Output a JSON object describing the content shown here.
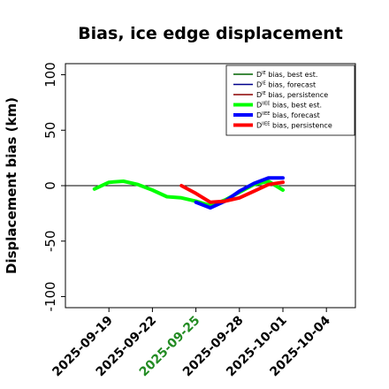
{
  "chart_data": {
    "type": "line",
    "title": "Bias, ice edge displacement",
    "xlabel": "",
    "ylabel": "Displacement bias (km)",
    "xlim": [
      "2025-09-16",
      "2025-10-06"
    ],
    "ylim": [
      -110,
      110
    ],
    "x_ticks": [
      "2025-09-19",
      "2025-09-22",
      "2025-09-25",
      "2025-09-28",
      "2025-10-01",
      "2025-10-04"
    ],
    "x_tick_colors": [
      "#000000",
      "#000000",
      "#228B22",
      "#000000",
      "#000000",
      "#000000"
    ],
    "y_ticks": [
      -100,
      -50,
      0,
      50,
      100
    ],
    "zero_line": true,
    "grid": false,
    "legend_position": "top-right",
    "legend": [
      {
        "prefix": "D",
        "sup": "IE",
        "suffix": " bias, best est.",
        "color": "#006400",
        "width": 1.5
      },
      {
        "prefix": "D",
        "sup": "IE",
        "suffix": " bias, forecast",
        "color": "#00008B",
        "width": 1.5
      },
      {
        "prefix": "D",
        "sup": "IE",
        "suffix": " bias, persistence",
        "color": "#8B0000",
        "width": 1.5
      },
      {
        "prefix": "D",
        "sup": "IIEE",
        "suffix": " bias, best est.",
        "color": "#00FF00",
        "width": 4
      },
      {
        "prefix": "D",
        "sup": "IIEE",
        "suffix": " bias, forecast",
        "color": "#0000FF",
        "width": 4
      },
      {
        "prefix": "D",
        "sup": "IIEE",
        "suffix": " bias, persistence",
        "color": "#FF0000",
        "width": 4
      }
    ],
    "series": [
      {
        "name": "D^IE bias, best est.",
        "color": "#006400",
        "width": 1.5,
        "x": [
          "2025-09-18",
          "2025-09-19",
          "2025-09-20",
          "2025-09-21",
          "2025-09-22",
          "2025-09-23",
          "2025-09-24",
          "2025-09-25",
          "2025-09-26",
          "2025-09-27",
          "2025-09-28",
          "2025-09-29",
          "2025-09-30",
          "2025-10-01"
        ],
        "y": [
          -3,
          3,
          4,
          1,
          -4,
          -10,
          -11,
          -14,
          -18,
          -13,
          -6,
          1,
          4,
          -4
        ]
      },
      {
        "name": "D^IE bias, forecast",
        "color": "#00008B",
        "width": 1.5,
        "x": [
          "2025-09-26",
          "2025-09-27",
          "2025-09-28",
          "2025-09-29",
          "2025-09-30",
          "2025-10-01"
        ],
        "y": [
          -20,
          -14,
          -5,
          2,
          7,
          7
        ]
      },
      {
        "name": "D^IE bias, persistence",
        "color": "#8B0000",
        "width": 1.5,
        "x": [
          "2025-09-24",
          "2025-09-25",
          "2025-09-26",
          "2025-09-27",
          "2025-09-28",
          "2025-09-29",
          "2025-09-30",
          "2025-10-01"
        ],
        "y": [
          0,
          -7,
          -15,
          -14,
          -11,
          -5,
          1,
          3
        ]
      },
      {
        "name": "D^IIEE bias, best est.",
        "color": "#00FF00",
        "width": 4,
        "x": [
          "2025-09-18",
          "2025-09-19",
          "2025-09-20",
          "2025-09-21",
          "2025-09-22",
          "2025-09-23",
          "2025-09-24",
          "2025-09-25",
          "2025-09-26",
          "2025-09-27",
          "2025-09-28",
          "2025-09-29",
          "2025-09-30",
          "2025-10-01"
        ],
        "y": [
          -3,
          3,
          4,
          1,
          -4,
          -10,
          -11,
          -14,
          -18,
          -13,
          -6,
          1,
          4,
          -4
        ]
      },
      {
        "name": "D^IIEE bias, forecast",
        "color": "#0000FF",
        "width": 4,
        "x": [
          "2025-09-25",
          "2025-09-26",
          "2025-09-27",
          "2025-09-28",
          "2025-09-29",
          "2025-09-30",
          "2025-10-01"
        ],
        "y": [
          -15,
          -20,
          -14,
          -5,
          2,
          7,
          7
        ]
      },
      {
        "name": "D^IIEE bias, persistence",
        "color": "#FF0000",
        "width": 4,
        "x": [
          "2025-09-24",
          "2025-09-25",
          "2025-09-26",
          "2025-09-27",
          "2025-09-28",
          "2025-09-29",
          "2025-09-30",
          "2025-10-01"
        ],
        "y": [
          0,
          -7,
          -15,
          -14,
          -11,
          -5,
          1,
          3
        ]
      }
    ]
  }
}
